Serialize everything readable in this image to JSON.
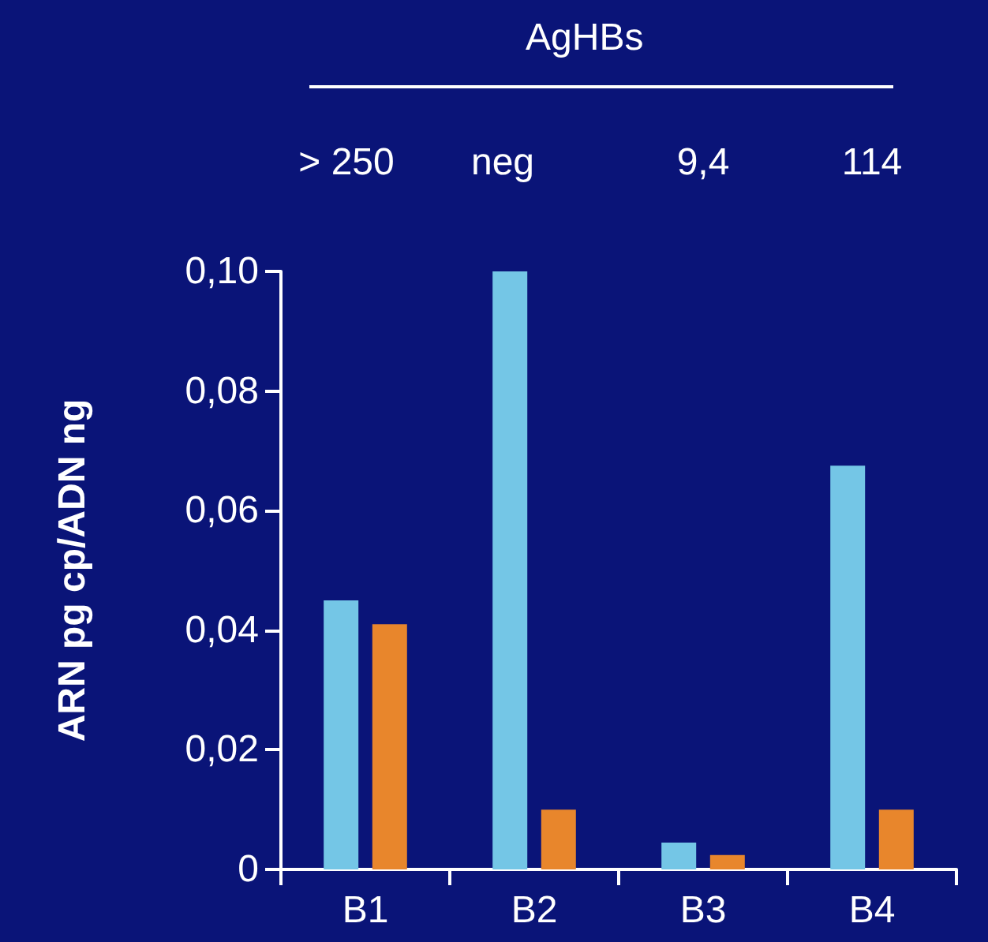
{
  "chart_data": {
    "type": "bar",
    "ylabel": "ARN pg cp/ADN ng",
    "categories": [
      "B1",
      "B2",
      "B3",
      "B4"
    ],
    "series": [
      {
        "color": "#74c6e6",
        "values": [
          0.045,
          0.1,
          0.0045,
          0.0675
        ]
      },
      {
        "color": "#e8862c",
        "values": [
          0.041,
          0.01,
          0.0024,
          0.01
        ]
      }
    ],
    "ylim": [
      0,
      0.1
    ],
    "yticks": [
      0,
      {
        "value": 0.02,
        "label": "0,02"
      },
      {
        "value": 0.04,
        "label": "0,04"
      },
      {
        "value": 0.06,
        "label": "0,06"
      },
      {
        "value": 0.08,
        "label": "0,08"
      },
      {
        "value": 0.1,
        "label": "0,10"
      }
    ],
    "annotations": [
      "AgHBs",
      "> 250",
      "neg",
      "9,4",
      "114"
    ]
  }
}
